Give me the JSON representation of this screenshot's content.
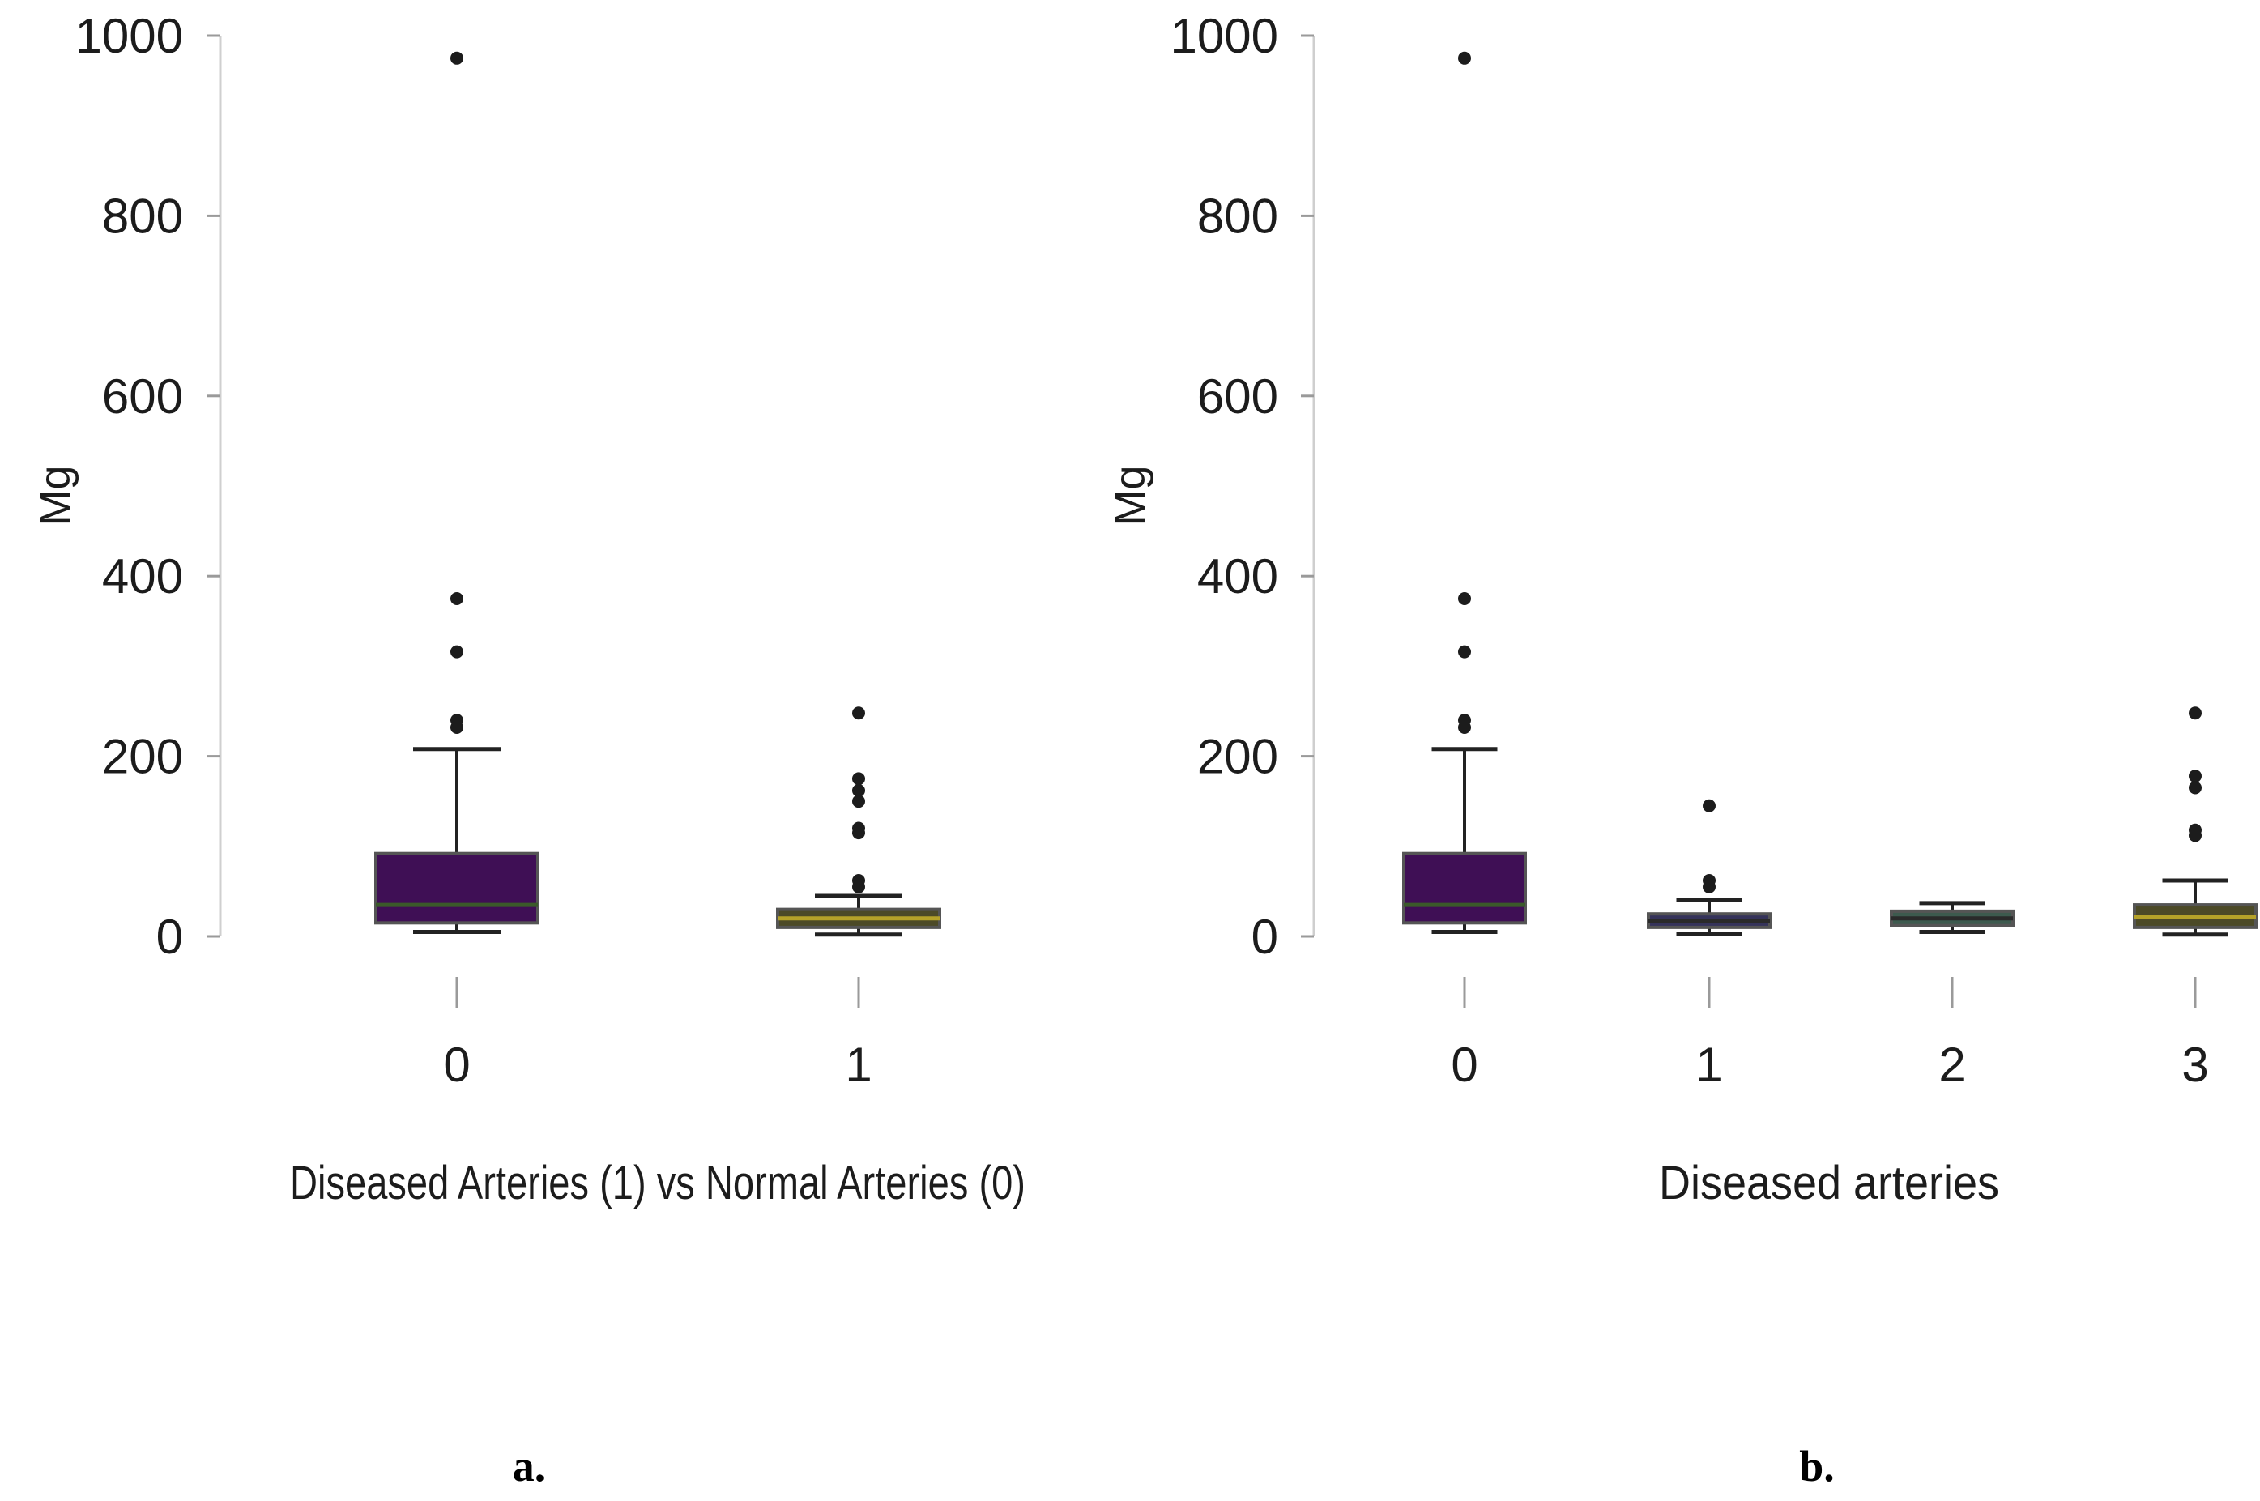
{
  "chart_data": [
    {
      "type": "boxplot",
      "panel_label": "a.",
      "xlabel": "Diseased Arteries (1) vs Normal Arteries (0)",
      "ylabel": "Mg",
      "ylim": [
        0,
        1000
      ],
      "yticks": [
        "0",
        "200",
        "400",
        "600",
        "800",
        "1000"
      ],
      "categories": [
        "0",
        "1"
      ],
      "boxes": [
        {
          "category": "0",
          "whisker_low": 5,
          "q1": 15,
          "median": 35,
          "q3": 92,
          "whisker_high": 208,
          "outliers": [
            232,
            240,
            316,
            375,
            975
          ],
          "color": "#3f0f55",
          "median_color": "#3b5a2a"
        },
        {
          "category": "1",
          "whisker_low": 2,
          "q1": 10,
          "median": 20,
          "q3": 30,
          "whisker_high": 45,
          "outliers": [
            55,
            62,
            115,
            120,
            150,
            162,
            175,
            248
          ],
          "color": "#4c4a27",
          "median_color": "#b5a229"
        }
      ]
    },
    {
      "type": "boxplot",
      "panel_label": "b.",
      "xlabel": "Diseased arteries",
      "ylabel": "Mg",
      "ylim": [
        0,
        1000
      ],
      "yticks": [
        "0",
        "200",
        "400",
        "600",
        "800",
        "1000"
      ],
      "categories": [
        "0",
        "1",
        "2",
        "3"
      ],
      "boxes": [
        {
          "category": "0",
          "whisker_low": 5,
          "q1": 15,
          "median": 35,
          "q3": 92,
          "whisker_high": 208,
          "outliers": [
            232,
            240,
            316,
            375,
            975
          ],
          "color": "#3f0f55",
          "median_color": "#3b5a2a"
        },
        {
          "category": "1",
          "whisker_low": 3,
          "q1": 10,
          "median": 17,
          "q3": 25,
          "whisker_high": 40,
          "outliers": [
            55,
            62,
            145
          ],
          "color": "#35335a",
          "median_color": "#2a2a2a"
        },
        {
          "category": "2",
          "whisker_low": 5,
          "q1": 12,
          "median": 20,
          "q3": 28,
          "whisker_high": 37,
          "outliers": [],
          "color": "#3d5a4e",
          "median_color": "#2a2a2a"
        },
        {
          "category": "3",
          "whisker_low": 2,
          "q1": 10,
          "median": 22,
          "q3": 35,
          "whisker_high": 62,
          "outliers": [
            112,
            118,
            165,
            178,
            248
          ],
          "color": "#4c4a27",
          "median_color": "#b5a229"
        }
      ]
    }
  ]
}
